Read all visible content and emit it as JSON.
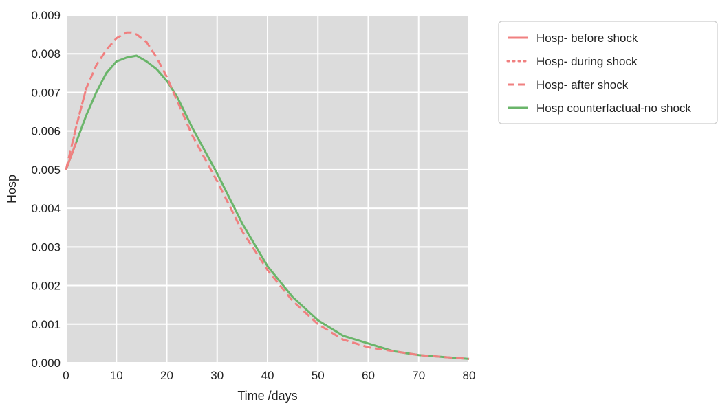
{
  "chart_data": {
    "type": "line",
    "title": "",
    "xlabel": "Time /days",
    "ylabel": "Hosp",
    "xlim": [
      0,
      80
    ],
    "ylim": [
      0,
      0.009
    ],
    "xticks": [
      "0",
      "10",
      "20",
      "30",
      "40",
      "50",
      "60",
      "70",
      "80"
    ],
    "yticks": [
      "0.000",
      "0.001",
      "0.002",
      "0.003",
      "0.004",
      "0.005",
      "0.006",
      "0.007",
      "0.008",
      "0.009"
    ],
    "grid": true,
    "background": "#dcdcdc",
    "legend_position": "outside-top-right",
    "series": [
      {
        "name": "Hosp- before shock",
        "color": "#f08080",
        "style": "solid",
        "x": [
          0,
          0.5,
          1,
          1.5,
          2
        ],
        "y": [
          0.005,
          0.00518,
          0.00535,
          0.00553,
          0.0057
        ]
      },
      {
        "name": "Hosp- during shock",
        "color": "#f08080",
        "style": "dotted",
        "x": [
          1.5,
          2,
          3,
          4
        ],
        "y": [
          0.0058,
          0.0061,
          0.0066,
          0.0071
        ]
      },
      {
        "name": "Hosp- after shock",
        "color": "#f08080",
        "style": "dashed",
        "x": [
          0,
          2,
          4,
          6,
          8,
          10,
          12,
          13,
          14,
          16,
          18,
          20,
          22,
          25,
          30,
          35,
          40,
          45,
          50,
          55,
          60,
          65,
          70,
          75,
          80
        ],
        "y": [
          0.005,
          0.0061,
          0.0071,
          0.0077,
          0.0081,
          0.0084,
          0.00855,
          0.00855,
          0.0085,
          0.0083,
          0.0079,
          0.0074,
          0.0068,
          0.0059,
          0.0047,
          0.0034,
          0.0024,
          0.0016,
          0.001,
          0.0006,
          0.0004,
          0.0003,
          0.0002,
          0.00015,
          0.0001
        ]
      },
      {
        "name": "Hosp counterfactual-no shock",
        "color": "#6ab56a",
        "style": "solid",
        "x": [
          0,
          2,
          4,
          6,
          8,
          10,
          12,
          14,
          16,
          18,
          20,
          22,
          25,
          30,
          35,
          40,
          45,
          50,
          55,
          60,
          65,
          70,
          75,
          80
        ],
        "y": [
          0.005,
          0.0057,
          0.0064,
          0.007,
          0.0075,
          0.0078,
          0.0079,
          0.00795,
          0.0078,
          0.0076,
          0.0073,
          0.0069,
          0.0061,
          0.0049,
          0.0036,
          0.0025,
          0.0017,
          0.0011,
          0.0007,
          0.0005,
          0.0003,
          0.0002,
          0.00015,
          0.0001
        ]
      }
    ]
  }
}
